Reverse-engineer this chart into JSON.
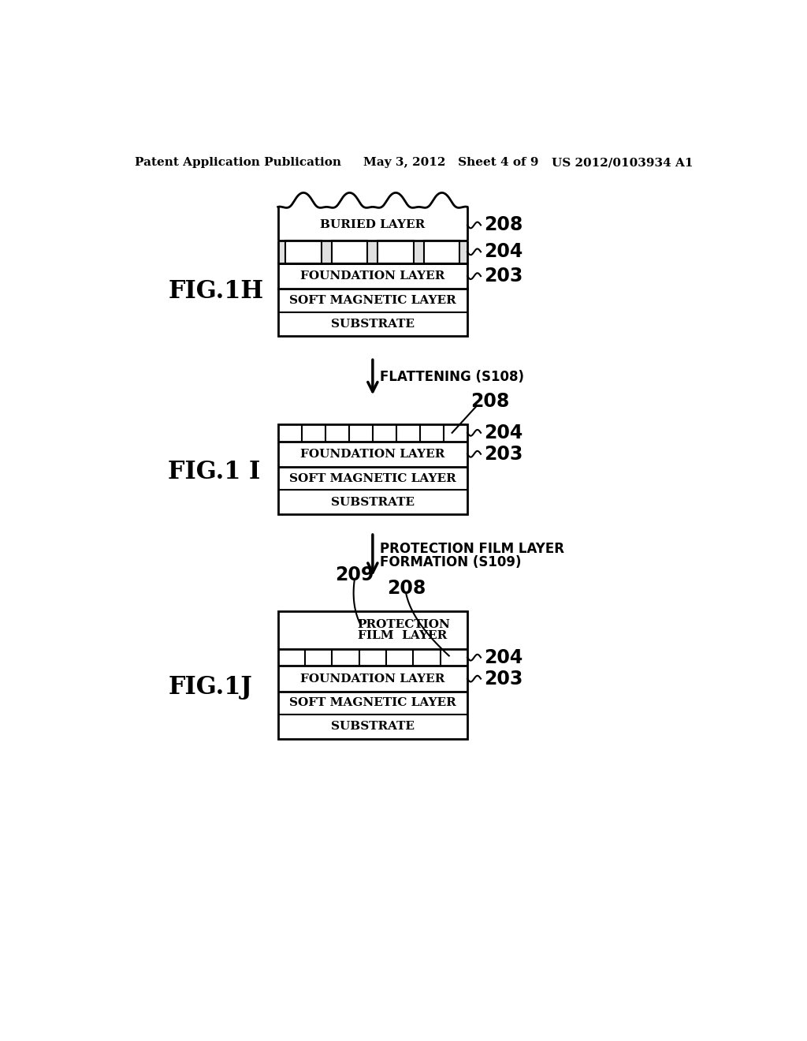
{
  "background_color": "#ffffff",
  "header_left": "Patent Application Publication",
  "header_mid": "May 3, 2012   Sheet 4 of 9",
  "header_right": "US 2012/0103934 A1",
  "header_fontsize": 11,
  "fig1h_label": "FIG.1H",
  "fig1i_label": "FIG.1 I",
  "fig1j_label": "FIG.1J",
  "arrow1_text": "FLATTENING (S108)",
  "arrow2_text_line1": "PROTECTION FILM LAYER",
  "arrow2_text_line2": "FORMATION (S109)",
  "label_208": "208",
  "label_204": "204",
  "label_203": "203",
  "label_209": "209",
  "layer_buried": "BURIED LAYER",
  "layer_foundation": "FOUNDATION LAYER",
  "layer_soft_magnetic": "SOFT MAGNETIC LAYER",
  "layer_substrate": "SUBSTRATE",
  "layer_protection_1": "PROTECTION",
  "layer_protection_2": "FILM  LAYER",
  "line_color": "#000000",
  "layer_fontsize": 11,
  "fig_label_fontsize": 22,
  "num_label_fontsize": 17
}
